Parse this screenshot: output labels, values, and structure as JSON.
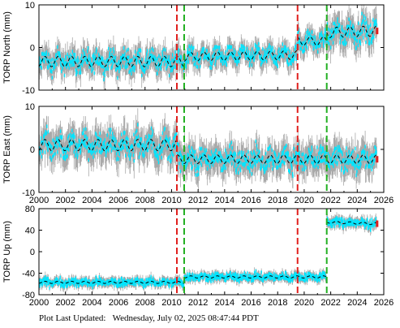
{
  "footer": {
    "label": "Plot Last Updated:",
    "value": "Wednesday, July 02, 2025 08:47:44 PDT"
  },
  "colors": {
    "error_bars": "#a9a9a9",
    "data": "#00e5ff",
    "model": "#000000",
    "equipment_change": "#e0201e",
    "earthquake": "#22b022",
    "last_point": "#e0201e"
  },
  "chart_data": [
    {
      "type": "scatter",
      "ylabel": "TORP North (mm)",
      "xlim": [
        2000,
        2026
      ],
      "ylim": [
        -10,
        10
      ],
      "xticks": [
        2000,
        2002,
        2004,
        2006,
        2008,
        2010,
        2012,
        2014,
        2016,
        2018,
        2020,
        2022,
        2024,
        2026
      ],
      "yticks": [
        -10,
        0,
        10
      ],
      "x_tick_labels_shown": false,
      "red_lines": [
        2010.4,
        2019.5
      ],
      "green_lines": [
        2010.95,
        2021.7
      ],
      "segments": [
        {
          "x": [
            2000.0,
            2010.95
          ],
          "level": -3.3,
          "trend": 0.0,
          "amp": 1.2,
          "scatter": 2.0
        },
        {
          "x": [
            2010.95,
            2019.5
          ],
          "level": -2.2,
          "trend": 0.05,
          "amp": 1.0,
          "scatter": 1.7
        },
        {
          "x": [
            2019.5,
            2021.7
          ],
          "level": 1.5,
          "trend": 0.0,
          "amp": 1.0,
          "scatter": 1.7
        },
        {
          "x": [
            2021.7,
            2025.5
          ],
          "level": 3.5,
          "trend": 0.1,
          "amp": 1.2,
          "scatter": 2.3
        }
      ]
    },
    {
      "type": "scatter",
      "ylabel": "TORP East (mm)",
      "xlim": [
        2000,
        2026
      ],
      "ylim": [
        -10,
        10
      ],
      "xticks": [
        2000,
        2002,
        2004,
        2006,
        2008,
        2010,
        2012,
        2014,
        2016,
        2018,
        2020,
        2022,
        2024,
        2026
      ],
      "yticks": [
        -10,
        0,
        10
      ],
      "x_tick_labels_shown": true,
      "red_lines": [
        2010.4,
        2019.5
      ],
      "green_lines": [
        2010.95,
        2021.7
      ],
      "segments": [
        {
          "x": [
            2000.0,
            2010.4
          ],
          "level": 1.0,
          "trend": 0.0,
          "amp": 1.3,
          "scatter": 2.5
        },
        {
          "x": [
            2010.4,
            2019.5
          ],
          "level": -2.3,
          "trend": 0.0,
          "amp": 1.0,
          "scatter": 2.3
        },
        {
          "x": [
            2019.5,
            2025.5
          ],
          "level": -2.3,
          "trend": 0.0,
          "amp": 1.0,
          "scatter": 2.3
        }
      ]
    },
    {
      "type": "scatter",
      "ylabel": "TORP Up (mm)",
      "xlim": [
        2000,
        2026
      ],
      "ylim": [
        -80,
        80
      ],
      "xticks": [
        2000,
        2002,
        2004,
        2006,
        2008,
        2010,
        2012,
        2014,
        2016,
        2018,
        2020,
        2022,
        2024,
        2026
      ],
      "yticks": [
        -80,
        -40,
        0,
        40,
        80
      ],
      "x_tick_labels_shown": true,
      "red_lines": [
        2010.4,
        2019.5
      ],
      "green_lines": [
        2010.95,
        2021.7
      ],
      "segments": [
        {
          "x": [
            2000.0,
            2010.95
          ],
          "level": -57,
          "trend": 0.0,
          "amp": 2.0,
          "scatter": 6
        },
        {
          "x": [
            2010.95,
            2021.7
          ],
          "level": -47,
          "trend": 0.0,
          "amp": 2.0,
          "scatter": 6
        },
        {
          "x": [
            2021.7,
            2025.5
          ],
          "level": 55,
          "trend": -0.8,
          "amp": 2.0,
          "scatter": 7
        }
      ]
    }
  ]
}
